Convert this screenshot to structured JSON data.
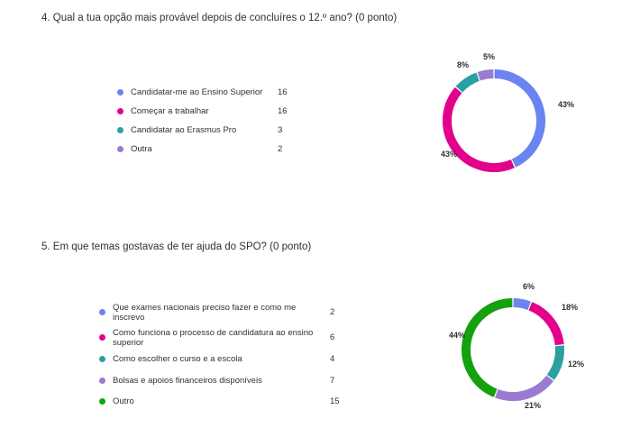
{
  "questions": [
    {
      "title": "4. Qual a tua opção mais provável depois de concluíres o 12.º ano? (0 ponto)",
      "chart_data": {
        "type": "pie",
        "style": "donut",
        "categories": [
          "Candidatar-me ao Ensino Superior",
          "Começar a trabalhar",
          "Candidatar ao Erasmus Pro",
          "Outra"
        ],
        "values": [
          16,
          16,
          3,
          2
        ],
        "percent_labels": [
          "43%",
          "43%",
          "8%",
          "5%"
        ],
        "colors": [
          "#6a84f2",
          "#e3008c",
          "#2aa1a1",
          "#9b7bd0"
        ],
        "legend": "left"
      }
    },
    {
      "title": "5. Em que temas gostavas de ter ajuda do SPO? (0 ponto)",
      "chart_data": {
        "type": "pie",
        "style": "donut",
        "categories": [
          "Que exames nacionais preciso fazer e como me inscrevo",
          "Como funciona o processo de candidatura ao ensino superior",
          "Como escolher o curso e a escola",
          "Bolsas e apoios financeiros disponíveis",
          "Outro"
        ],
        "category_lines": [
          [
            "Que exames nacionais preciso fazer e como me",
            "inscrevo"
          ],
          [
            "Como funciona o processo de candidatura ao ensino",
            "superior"
          ],
          [
            "Como escolher o curso e a escola"
          ],
          [
            "Bolsas e apoios financeiros disponíveis"
          ],
          [
            "Outro"
          ]
        ],
        "values": [
          2,
          6,
          4,
          7,
          15
        ],
        "percent_labels": [
          "6%",
          "18%",
          "12%",
          "21%",
          "44%"
        ],
        "colors": [
          "#6a84f2",
          "#e3008c",
          "#2aa1a1",
          "#9b7bd0",
          "#13a10e"
        ],
        "legend": "left"
      }
    }
  ]
}
